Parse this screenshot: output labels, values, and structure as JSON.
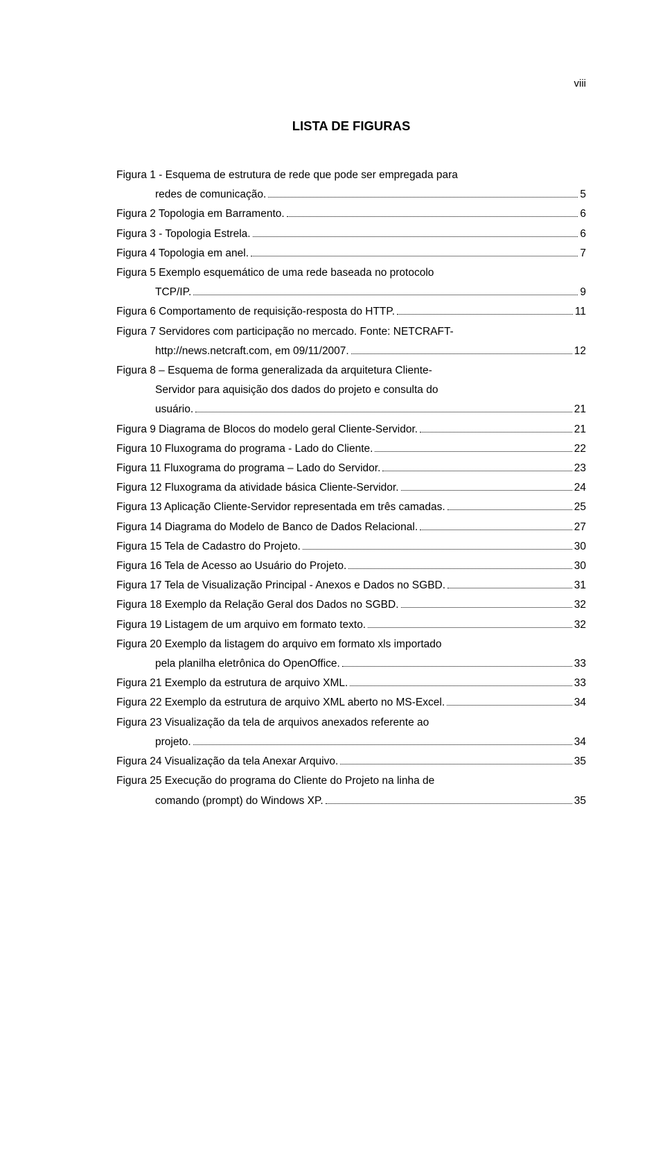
{
  "page_number_label": "viii",
  "title": "LISTA DE FIGURAS",
  "font": {
    "body_size_pt": 12,
    "title_size_pt": 14,
    "family": "Arial"
  },
  "colors": {
    "text": "#000000",
    "background": "#ffffff"
  },
  "entries": [
    {
      "lines": [
        "Figura 1 - Esquema de estrutura de rede que pode ser empregada para"
      ],
      "tail": "redes de comunicação.",
      "page": "5",
      "indent_tail": true
    },
    {
      "tail": "Figura 2 Topologia em Barramento.",
      "page": "6"
    },
    {
      "tail": "Figura 3 - Topologia Estrela.",
      "page": "6"
    },
    {
      "tail": "Figura 4 Topologia em anel.",
      "page": "7"
    },
    {
      "lines": [
        "Figura 5 Exemplo esquemático de uma rede baseada no protocolo"
      ],
      "tail": "TCP/IP.",
      "page": "9",
      "indent_tail": true
    },
    {
      "tail": "Figura 6 Comportamento de requisição-resposta do HTTP.",
      "page": "11"
    },
    {
      "lines": [
        "Figura 7 Servidores com participação no mercado. Fonte: NETCRAFT-"
      ],
      "tail": "http://news.netcraft.com, em 09/11/2007.",
      "page": "12",
      "indent_tail": true
    },
    {
      "lines": [
        "Figura 8 – Esquema de forma generalizada da arquitetura Cliente-",
        "Servidor para aquisição dos dados do projeto e consulta do"
      ],
      "tail": "usuário.",
      "page": "21",
      "indent_tail": true,
      "indent_lines_from": 1
    },
    {
      "tail": "Figura 9 Diagrama de Blocos do modelo geral Cliente-Servidor.",
      "page": "21"
    },
    {
      "tail": "Figura 10 Fluxograma do programa - Lado do Cliente.",
      "page": "22"
    },
    {
      "tail": "Figura 11 Fluxograma do programa – Lado do Servidor.",
      "page": "23"
    },
    {
      "tail": "Figura 12 Fluxograma da atividade básica Cliente-Servidor.",
      "page": "24"
    },
    {
      "tail": "Figura 13 Aplicação Cliente-Servidor representada em três camadas.",
      "page": "25"
    },
    {
      "tail": "Figura 14 Diagrama do Modelo de Banco de Dados Relacional.",
      "page": "27"
    },
    {
      "tail": "Figura 15 Tela de Cadastro do Projeto.",
      "page": "30"
    },
    {
      "tail": "Figura 16 Tela de Acesso ao Usuário do Projeto.",
      "page": "30"
    },
    {
      "tail": "Figura 17 Tela de Visualização Principal - Anexos e Dados no SGBD.",
      "page": "31"
    },
    {
      "tail": "Figura 18 Exemplo da Relação Geral dos Dados no SGBD.",
      "page": "32"
    },
    {
      "tail": "Figura 19 Listagem de um arquivo em formato texto.",
      "page": "32"
    },
    {
      "lines": [
        "Figura 20 Exemplo da listagem do arquivo em formato xls importado"
      ],
      "tail": "pela planilha eletrônica do OpenOffice.",
      "page": "33",
      "indent_tail": true
    },
    {
      "tail": "Figura 21 Exemplo da estrutura de arquivo XML.",
      "page": "33"
    },
    {
      "tail": "Figura 22 Exemplo da estrutura de arquivo XML aberto no MS-Excel.",
      "page": "34"
    },
    {
      "lines": [
        "Figura 23 Visualização da tela de arquivos anexados referente ao"
      ],
      "tail": "projeto.",
      "page": "34",
      "indent_tail": true
    },
    {
      "tail": "Figura 24 Visualização da tela Anexar Arquivo.",
      "page": "35"
    },
    {
      "lines": [
        "Figura 25 Execução do programa do Cliente do Projeto na linha de"
      ],
      "tail": "comando (prompt) do Windows XP.",
      "page": "35",
      "indent_tail": true
    }
  ]
}
